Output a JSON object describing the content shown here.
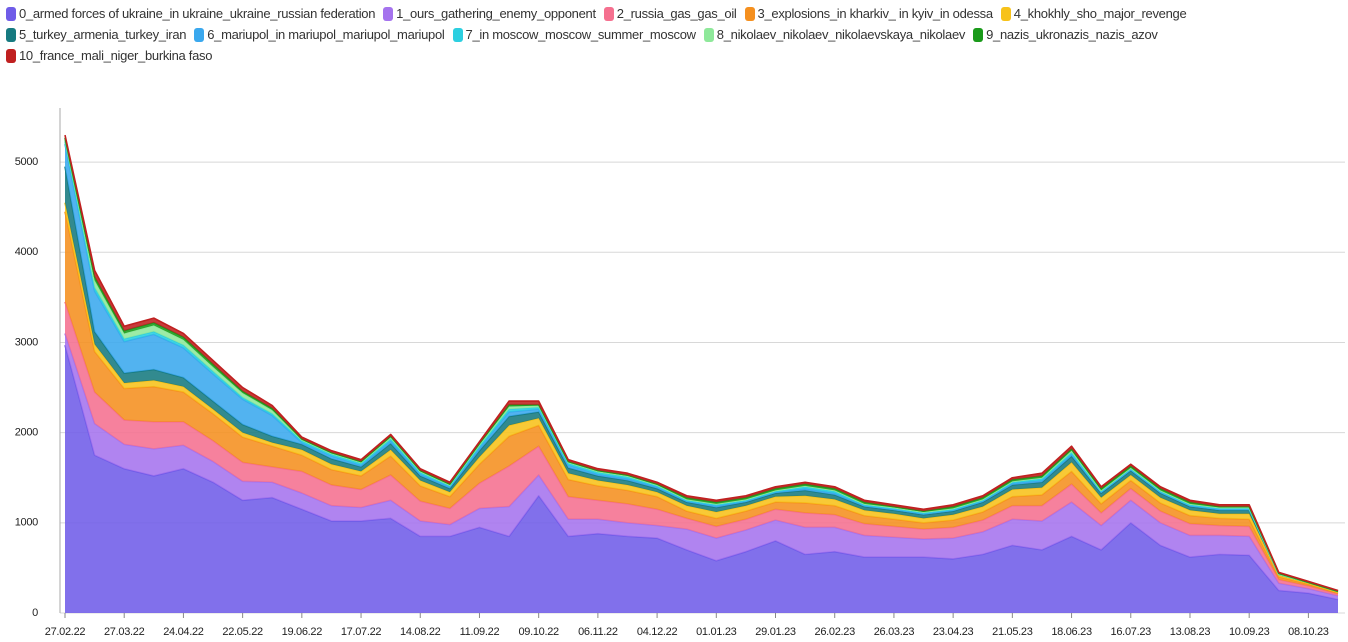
{
  "chart_data": {
    "type": "stacked_area",
    "categories": [
      "27.02.22",
      null,
      "27.03.22",
      null,
      "24.04.22",
      null,
      "22.05.22",
      null,
      "19.06.22",
      null,
      "17.07.22",
      null,
      "14.08.22",
      null,
      "11.09.22",
      null,
      "09.10.22",
      null,
      "06.11.22",
      null,
      "04.12.22",
      null,
      "01.01.23",
      null,
      "29.01.23",
      null,
      "26.02.23",
      null,
      "26.03.23",
      null,
      "23.04.23",
      null,
      "21.05.23",
      null,
      "18.06.23",
      null,
      "16.07.23",
      null,
      "13.08.23",
      null,
      "10.09.23",
      null,
      "08.10.23",
      null
    ],
    "series": [
      {
        "name": "0_armed forces of ukraine_in ukraine_ukraine_russian federation",
        "color": "#6f5ce8",
        "values": [
          2970,
          1750,
          1600,
          1520,
          1600,
          1450,
          1250,
          1280,
          1150,
          1020,
          1020,
          1050,
          850,
          850,
          950,
          850,
          1300,
          850,
          880,
          850,
          830,
          700,
          580,
          680,
          800,
          650,
          680,
          620,
          620,
          620,
          600,
          650,
          750,
          700,
          850,
          700,
          1000,
          750,
          620,
          650,
          640,
          250,
          220,
          150
        ]
      },
      {
        "name": "1_ours_gathering_enemy_opponent",
        "color": "#a573ee",
        "values": [
          130,
          350,
          270,
          300,
          260,
          230,
          210,
          170,
          180,
          170,
          150,
          200,
          170,
          130,
          210,
          330,
          230,
          190,
          160,
          150,
          140,
          230,
          250,
          240,
          230,
          300,
          270,
          240,
          220,
          200,
          230,
          250,
          290,
          320,
          380,
          270,
          250,
          250,
          240,
          210,
          210,
          80,
          50,
          40
        ]
      },
      {
        "name": "2_russia_gas_gas_oil",
        "color": "#f5708f",
        "values": [
          350,
          350,
          270,
          300,
          260,
          230,
          210,
          170,
          240,
          230,
          200,
          280,
          220,
          180,
          280,
          450,
          320,
          250,
          210,
          210,
          180,
          120,
          130,
          120,
          120,
          160,
          140,
          130,
          120,
          110,
          120,
          130,
          150,
          170,
          200,
          140,
          130,
          130,
          130,
          110,
          110,
          40,
          30,
          20
        ]
      },
      {
        "name": "3_explosions_in kharkiv_ in kyiv_in odessa",
        "color": "#f5901f",
        "values": [
          1000,
          450,
          350,
          390,
          330,
          300,
          280,
          230,
          180,
          170,
          150,
          210,
          170,
          130,
          210,
          330,
          230,
          190,
          160,
          150,
          140,
          80,
          90,
          90,
          80,
          110,
          100,
          90,
          80,
          70,
          80,
          90,
          100,
          120,
          140,
          100,
          90,
          90,
          90,
          80,
          80,
          30,
          20,
          10
        ]
      },
      {
        "name": "4_khokhly_sho_major_revenge",
        "color": "#f7c21a",
        "values": [
          100,
          80,
          60,
          70,
          60,
          50,
          50,
          40,
          60,
          60,
          50,
          70,
          60,
          50,
          80,
          120,
          80,
          70,
          60,
          60,
          50,
          60,
          70,
          60,
          60,
          80,
          70,
          60,
          60,
          50,
          60,
          60,
          80,
          80,
          100,
          70,
          60,
          60,
          60,
          50,
          60,
          20,
          10,
          10
        ]
      },
      {
        "name": "5_turkey_armenia_turkey_iran",
        "color": "#167a80",
        "values": [
          400,
          140,
          110,
          120,
          100,
          90,
          90,
          70,
          60,
          60,
          50,
          70,
          50,
          40,
          70,
          100,
          70,
          60,
          50,
          50,
          40,
          40,
          50,
          40,
          40,
          60,
          50,
          40,
          40,
          40,
          40,
          50,
          50,
          60,
          70,
          50,
          50,
          50,
          40,
          40,
          40,
          10,
          10,
          10
        ]
      },
      {
        "name": "6_mariupol_in mariupol_mariupol_mariupol",
        "color": "#3aa8ee",
        "values": [
          250,
          450,
          350,
          390,
          330,
          300,
          280,
          230,
          20,
          30,
          20,
          30,
          20,
          20,
          30,
          50,
          30,
          30,
          20,
          20,
          20,
          10,
          20,
          10,
          10,
          20,
          20,
          10,
          10,
          10,
          10,
          10,
          20,
          20,
          20,
          10,
          10,
          10,
          10,
          10,
          10,
          0,
          0,
          0
        ]
      },
      {
        "name": "7_in moscow_moscow_summer_moscow",
        "color": "#2ccfe0",
        "values": [
          30,
          40,
          30,
          30,
          30,
          30,
          20,
          20,
          20,
          20,
          20,
          20,
          20,
          10,
          20,
          30,
          20,
          20,
          20,
          20,
          10,
          10,
          10,
          10,
          10,
          20,
          20,
          10,
          10,
          10,
          10,
          10,
          10,
          20,
          20,
          10,
          10,
          10,
          10,
          10,
          10,
          0,
          0,
          0
        ]
      },
      {
        "name": "8_nikolaev_nikolaev_nikolaevskaya_nikolaev",
        "color": "#8ee89a",
        "values": [
          20,
          80,
          60,
          70,
          60,
          50,
          50,
          40,
          10,
          10,
          10,
          20,
          10,
          10,
          20,
          30,
          20,
          10,
          10,
          10,
          10,
          10,
          10,
          10,
          10,
          10,
          10,
          10,
          10,
          10,
          10,
          10,
          10,
          10,
          20,
          10,
          10,
          10,
          10,
          10,
          10,
          0,
          0,
          0
        ]
      },
      {
        "name": "9_nazis_ukronazis_nazis_azov",
        "color": "#1a9a1a",
        "values": [
          20,
          40,
          30,
          30,
          30,
          30,
          20,
          20,
          10,
          10,
          10,
          10,
          10,
          10,
          10,
          20,
          10,
          10,
          10,
          10,
          10,
          20,
          20,
          20,
          20,
          20,
          20,
          20,
          10,
          10,
          20,
          20,
          20,
          20,
          20,
          20,
          20,
          20,
          20,
          10,
          10,
          10,
          0,
          0
        ]
      },
      {
        "name": "10_france_mali_niger_burkina faso",
        "color": "#c02020",
        "values": [
          30,
          70,
          50,
          50,
          40,
          40,
          40,
          30,
          20,
          20,
          20,
          20,
          20,
          20,
          20,
          40,
          40,
          20,
          20,
          20,
          20,
          20,
          20,
          20,
          20,
          20,
          20,
          20,
          20,
          20,
          20,
          20,
          20,
          30,
          30,
          20,
          20,
          20,
          20,
          20,
          20,
          10,
          10,
          10
        ]
      }
    ],
    "ylim": [
      0,
      5600
    ],
    "yticks": [
      0,
      1000,
      2000,
      3000,
      4000,
      5000
    ],
    "grid": true
  }
}
